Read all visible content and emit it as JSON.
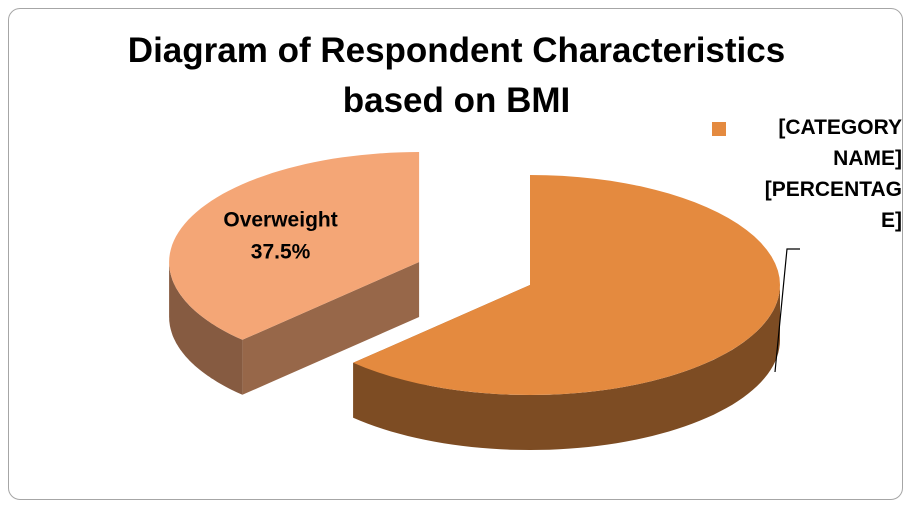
{
  "chart_data": {
    "type": "pie3d",
    "title": "Diagram of Respondent Characteristics based on BMI",
    "categories": [
      "Overweight",
      null
    ],
    "values": [
      37.5,
      62.5
    ],
    "value_labels": [
      "37.5%",
      null
    ],
    "colors": [
      "#f4a676",
      "#e48a3f"
    ],
    "annotations": [
      {
        "text": "[CATEGORY NAME] [PERCENTAGE]",
        "color": "#e48a3f"
      }
    ]
  }
}
